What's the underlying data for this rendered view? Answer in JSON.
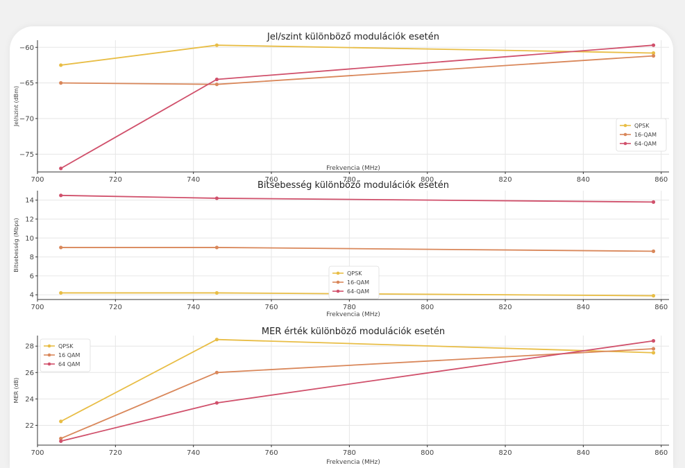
{
  "colors": {
    "qpsk": "#e8bd45",
    "qam16": "#d9875a",
    "qam64": "#d0506b",
    "grid": "#e6e6e6",
    "axis": "#333333"
  },
  "chart_data": [
    {
      "type": "line",
      "title": "Jel/szint különböző modulációk esetén",
      "xlabel": "Frekvencia (MHz)",
      "ylabel": "Jel/szint (dBm)",
      "x": [
        706,
        746,
        858
      ],
      "xlim": [
        700,
        862
      ],
      "ylim": [
        -77.5,
        -59
      ],
      "xticks": [
        700,
        720,
        740,
        760,
        780,
        800,
        820,
        840,
        860
      ],
      "yticks": [
        -75,
        -70,
        -65,
        -60
      ],
      "grid": true,
      "legend": "bottom-right",
      "series": [
        {
          "name": "QPSK",
          "color": "#e8bd45",
          "values": [
            -62.5,
            -59.7,
            -60.8
          ]
        },
        {
          "name": "16-QAM",
          "color": "#d9875a",
          "values": [
            -65,
            -65.2,
            -61.2
          ]
        },
        {
          "name": "64-QAM",
          "color": "#d0506b",
          "values": [
            -77,
            -64.5,
            -59.7
          ]
        }
      ]
    },
    {
      "type": "line",
      "title": "Bitsebesség különböző modulációk esetén",
      "xlabel": "Frekvencia (MHz)",
      "ylabel": "Bitsebesség (Mbps)",
      "x": [
        706,
        746,
        858
      ],
      "xlim": [
        700,
        862
      ],
      "ylim": [
        3.5,
        15
      ],
      "xticks": [
        700,
        720,
        740,
        760,
        780,
        800,
        820,
        840,
        860
      ],
      "yticks": [
        4,
        6,
        8,
        10,
        12,
        14
      ],
      "grid": true,
      "legend": "bottom-center",
      "series": [
        {
          "name": "QPSK",
          "color": "#e8bd45",
          "values": [
            4.2,
            4.2,
            3.9
          ]
        },
        {
          "name": "16-QAM",
          "color": "#d9875a",
          "values": [
            9,
            9,
            8.6
          ]
        },
        {
          "name": "64-QAM",
          "color": "#d0506b",
          "values": [
            14.5,
            14.2,
            13.8
          ]
        }
      ]
    },
    {
      "type": "line",
      "title": "MER érték különböző modulációk esetén",
      "xlabel": "Frekvencia (MHz)",
      "ylabel": "MER (dB)",
      "x": [
        706,
        746,
        858
      ],
      "xlim": [
        700,
        862
      ],
      "ylim": [
        20.5,
        28.8
      ],
      "xticks": [
        700,
        720,
        740,
        760,
        780,
        800,
        820,
        840,
        860
      ],
      "yticks": [
        22,
        24,
        26,
        28
      ],
      "grid": true,
      "legend": "top-left",
      "series": [
        {
          "name": "QPSK",
          "color": "#e8bd45",
          "values": [
            22.3,
            28.5,
            27.5
          ]
        },
        {
          "name": "16 QAM",
          "color": "#d9875a",
          "values": [
            21,
            26,
            27.8
          ]
        },
        {
          "name": "64 QAM",
          "color": "#d0506b",
          "values": [
            20.8,
            23.7,
            28.4
          ]
        }
      ]
    }
  ]
}
